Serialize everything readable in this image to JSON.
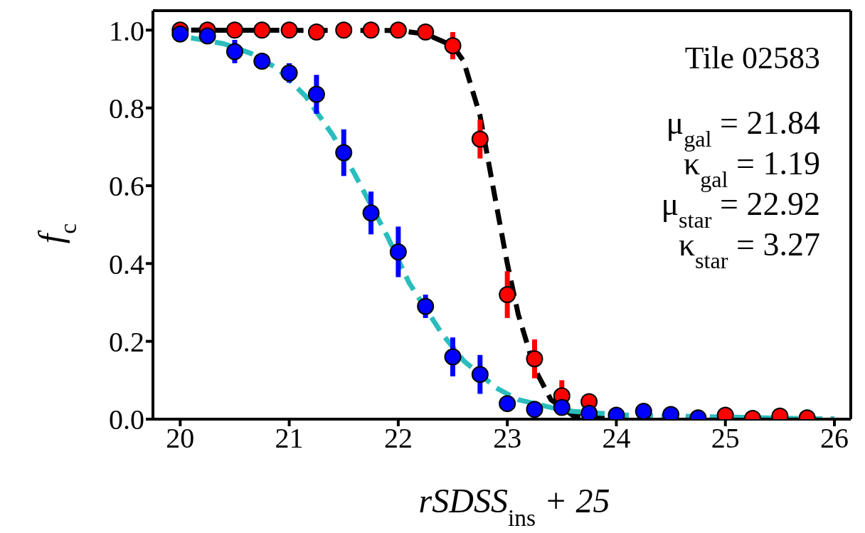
{
  "chart_data": {
    "type": "scatter",
    "xlabel": "rSDSS$_{ins}$ + 25",
    "ylabel": "f$_{c}$",
    "xlim": [
      19.75,
      26.15
    ],
    "ylim": [
      0,
      1.05
    ],
    "xticks": [
      20,
      21,
      22,
      23,
      24,
      25,
      26
    ],
    "yticks": [
      {
        "value": 0,
        "label": "0.0"
      },
      {
        "value": 0.2,
        "label": "0.2"
      },
      {
        "value": 0.4,
        "label": "0.4"
      },
      {
        "value": 0.6,
        "label": "0.6"
      },
      {
        "value": 0.8,
        "label": "0.8"
      },
      {
        "value": 1,
        "label": "1.0"
      }
    ],
    "grid": false,
    "legend": false,
    "marker": "circle",
    "annotations": [
      "Tile 02583",
      "μ$_{gal}$ = 21.84",
      "κ$_{gal}$ = 1.19",
      "μ$_{star}$ = 22.92",
      "κ$_{star}$ = 3.27"
    ],
    "series": [
      {
        "type": "line",
        "marker": "none",
        "line_style": "dashed",
        "color": "#000000",
        "x": [
          20.1,
          22,
          22.25,
          22.5,
          22.6,
          22.75,
          22.9,
          23,
          23.1,
          23.25,
          23.4,
          23.6,
          24,
          26
        ],
        "values": [
          1,
          0.999,
          0.99,
          0.96,
          0.92,
          0.78,
          0.55,
          0.4,
          0.27,
          0.13,
          0.05,
          0.01,
          0,
          0
        ]
      },
      {
        "type": "line",
        "marker": "none",
        "line_style": "dashed",
        "color": "#2bbdbd",
        "x": [
          20.1,
          20.4,
          20.65,
          20.9,
          21.15,
          21.4,
          21.6,
          21.9,
          22.1,
          22.4,
          22.6,
          22.9,
          23.1,
          23.4,
          23.6,
          24.1,
          26
        ],
        "values": [
          0.98,
          0.965,
          0.94,
          0.9,
          0.83,
          0.73,
          0.63,
          0.47,
          0.35,
          0.22,
          0.15,
          0.08,
          0.05,
          0.03,
          0.02,
          0.01,
          0
        ]
      },
      {
        "color": "#ff0000",
        "x": [
          20,
          20.25,
          20.5,
          20.75,
          21,
          21.25,
          21.5,
          21.75,
          22,
          22.25,
          22.5,
          22.75,
          23,
          23.25,
          23.5,
          23.75,
          25,
          25.25,
          25.5,
          25.75
        ],
        "values": [
          1,
          1,
          1,
          1,
          1,
          0.995,
          1,
          1,
          1,
          0.995,
          0.96,
          0.72,
          0.32,
          0.155,
          0.06,
          0.045,
          0.01,
          0.002,
          0.008,
          0.003
        ],
        "errors": [
          null,
          null,
          null,
          null,
          null,
          null,
          null,
          null,
          null,
          null,
          0.035,
          0.05,
          0.06,
          0.05,
          0.04,
          null,
          null,
          null,
          null,
          null
        ]
      },
      {
        "color": "#0000ff",
        "x": [
          20,
          20.25,
          20.5,
          20.75,
          21,
          21.25,
          21.5,
          21.75,
          22,
          22.25,
          22.5,
          22.75,
          23,
          23.25,
          23.5,
          23.75,
          24,
          24.25,
          24.5,
          24.75
        ],
        "values": [
          0.99,
          0.985,
          0.945,
          0.92,
          0.89,
          0.835,
          0.685,
          0.53,
          0.43,
          0.29,
          0.16,
          0.115,
          0.04,
          0.025,
          0.03,
          0.015,
          0.01,
          0.02,
          0.012,
          0.003
        ],
        "errors": [
          null,
          null,
          0.03,
          null,
          0.025,
          0.05,
          0.06,
          0.055,
          0.065,
          0.03,
          0.05,
          0.05,
          null,
          null,
          null,
          null,
          null,
          null,
          null,
          null
        ]
      }
    ]
  }
}
